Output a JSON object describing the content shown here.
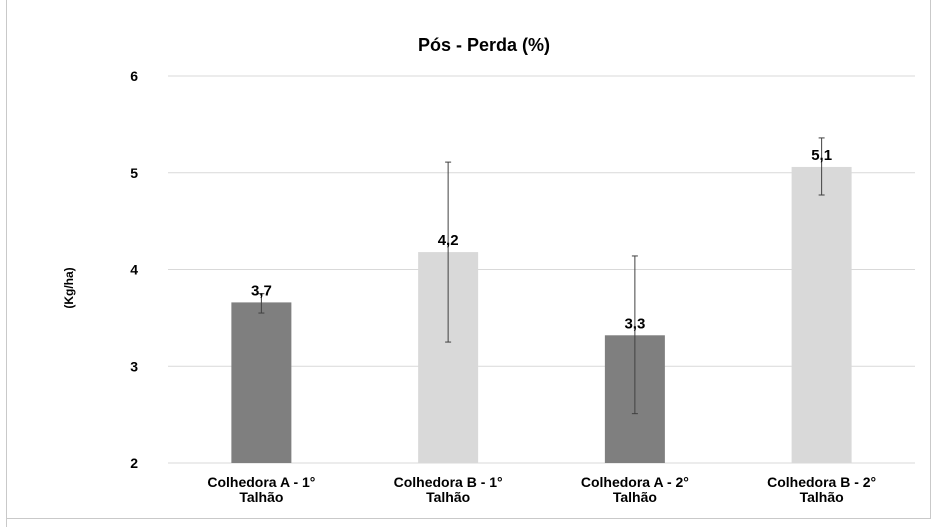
{
  "chart_data": {
    "type": "bar",
    "title": "Pós - Perda (%)",
    "ylabel": "(Kg/ha)",
    "xlabel": "",
    "ylim": [
      2,
      6
    ],
    "yticks": [
      2,
      3,
      4,
      5,
      6
    ],
    "grid": true,
    "categories": [
      [
        "Colhedora A - 1°",
        "Talhão"
      ],
      [
        "Colhedora B - 1°",
        "Talhão"
      ],
      [
        "Colhedora A - 2°",
        "Talhão"
      ],
      [
        "Colhedora B - 2°",
        "Talhão"
      ]
    ],
    "values": [
      3.66,
      4.18,
      3.32,
      5.06
    ],
    "data_labels": [
      "3,7",
      "4,2",
      "3,3",
      "5,1"
    ],
    "error_bars": [
      [
        3.55,
        3.75
      ],
      [
        3.25,
        5.11
      ],
      [
        2.51,
        4.14
      ],
      [
        4.77,
        5.36
      ]
    ],
    "colors": [
      "#7f7f7f",
      "#d9d9d9",
      "#7f7f7f",
      "#d9d9d9"
    ]
  }
}
